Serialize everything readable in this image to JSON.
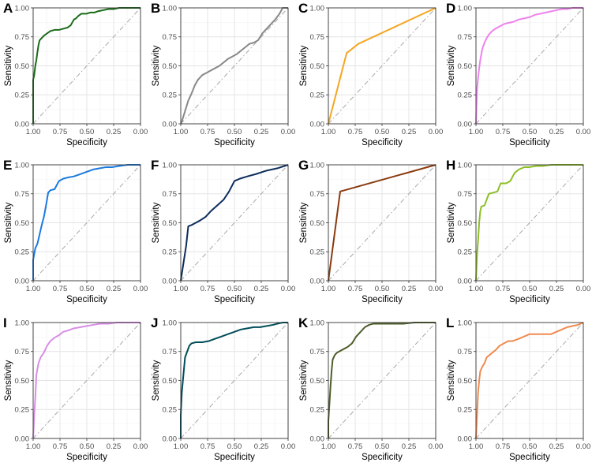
{
  "figure": {
    "rows": 3,
    "cols": 4
  },
  "chart_data": [
    {
      "type": "line",
      "label": "A",
      "xlabel": "Specificity",
      "ylabel": "Sensitivity",
      "xlim": [
        1,
        0
      ],
      "ylim": [
        0,
        1
      ],
      "x_ticks": [
        "1.00",
        "0.75",
        "0.50",
        "0.25",
        "0.00"
      ],
      "y_ticks": [
        "0.00",
        "0.25",
        "0.50",
        "0.75",
        "1.00"
      ],
      "color": "#1a6b1a",
      "series": [
        {
          "name": "ROC",
          "x": [
            1,
            1,
            0.99,
            0.98,
            0.97,
            0.96,
            0.95,
            0.94,
            0.92,
            0.9,
            0.87,
            0.84,
            0.8,
            0.76,
            0.72,
            0.68,
            0.65,
            0.62,
            0.6,
            0.58,
            0.55,
            0.5,
            0.47,
            0.43,
            0.4,
            0.35,
            0.3,
            0.25,
            0.2,
            0.1,
            0
          ],
          "y": [
            0,
            0.38,
            0.42,
            0.5,
            0.55,
            0.62,
            0.68,
            0.72,
            0.74,
            0.76,
            0.78,
            0.8,
            0.81,
            0.81,
            0.82,
            0.83,
            0.85,
            0.9,
            0.91,
            0.93,
            0.95,
            0.95,
            0.96,
            0.96,
            0.97,
            0.98,
            0.99,
            0.99,
            1,
            1,
            1
          ]
        }
      ]
    },
    {
      "type": "line",
      "label": "B",
      "xlabel": "Specificity",
      "ylabel": "Sensitivity",
      "xlim": [
        1,
        0
      ],
      "ylim": [
        0,
        1
      ],
      "x_ticks": [
        "1.00",
        "0.75",
        "0.50",
        "0.25",
        "0.00"
      ],
      "y_ticks": [
        "0.00",
        "0.25",
        "0.50",
        "0.75",
        "1.00"
      ],
      "color": "#888888",
      "series": [
        {
          "name": "ROC",
          "x": [
            1,
            0.99,
            0.97,
            0.95,
            0.93,
            0.9,
            0.87,
            0.84,
            0.8,
            0.76,
            0.72,
            0.68,
            0.64,
            0.6,
            0.56,
            0.52,
            0.48,
            0.44,
            0.4,
            0.36,
            0.32,
            0.28,
            0.24,
            0.2,
            0.16,
            0.12,
            0.08,
            0.05,
            0
          ],
          "y": [
            0,
            0.02,
            0.08,
            0.14,
            0.2,
            0.26,
            0.33,
            0.38,
            0.42,
            0.44,
            0.46,
            0.48,
            0.5,
            0.53,
            0.56,
            0.58,
            0.6,
            0.63,
            0.66,
            0.69,
            0.7,
            0.72,
            0.78,
            0.82,
            0.86,
            0.9,
            0.95,
            1,
            1
          ]
        }
      ]
    },
    {
      "type": "line",
      "label": "C",
      "xlabel": "Specificity",
      "ylabel": "Sensitivity",
      "xlim": [
        1,
        0
      ],
      "ylim": [
        0,
        1
      ],
      "x_ticks": [
        "1.00",
        "0.75",
        "0.50",
        "0.25",
        "0.00"
      ],
      "y_ticks": [
        "0.00",
        "0.25",
        "0.50",
        "0.75",
        "1.00"
      ],
      "color": "#f5a623",
      "series": [
        {
          "name": "ROC",
          "x": [
            1,
            0.83,
            0.72,
            0
          ],
          "y": [
            0,
            0.61,
            0.69,
            1
          ]
        }
      ]
    },
    {
      "type": "line",
      "label": "D",
      "xlabel": "Specificity",
      "ylabel": "Sensitivity",
      "xlim": [
        1,
        0
      ],
      "ylim": [
        0,
        1
      ],
      "x_ticks": [
        "1.00",
        "0.75",
        "0.50",
        "0.25",
        "0.00"
      ],
      "y_ticks": [
        "0.00",
        "0.25",
        "0.50",
        "0.75",
        "1.00"
      ],
      "color": "#ee82ee",
      "series": [
        {
          "name": "ROC",
          "x": [
            1,
            0.99,
            0.98,
            0.97,
            0.96,
            0.95,
            0.94,
            0.92,
            0.9,
            0.88,
            0.85,
            0.82,
            0.78,
            0.74,
            0.7,
            0.65,
            0.6,
            0.55,
            0.5,
            0.45,
            0.4,
            0.35,
            0.3,
            0.25,
            0.2,
            0.15,
            0.1,
            0.05,
            0
          ],
          "y": [
            0,
            0.3,
            0.4,
            0.48,
            0.55,
            0.6,
            0.65,
            0.7,
            0.74,
            0.77,
            0.8,
            0.82,
            0.84,
            0.86,
            0.87,
            0.88,
            0.9,
            0.91,
            0.92,
            0.94,
            0.95,
            0.96,
            0.97,
            0.98,
            0.99,
            0.99,
            1,
            1,
            1
          ]
        }
      ]
    },
    {
      "type": "line",
      "label": "E",
      "xlabel": "Specificity",
      "ylabel": "Sensitivity",
      "xlim": [
        1,
        0
      ],
      "ylim": [
        0,
        1
      ],
      "x_ticks": [
        "1.00",
        "0.75",
        "0.50",
        "0.25",
        "0.00"
      ],
      "y_ticks": [
        "0.00",
        "0.25",
        "0.50",
        "0.75",
        "1.00"
      ],
      "color": "#1a7ae0",
      "series": [
        {
          "name": "ROC",
          "x": [
            1,
            1,
            0.98,
            0.96,
            0.94,
            0.92,
            0.9,
            0.88,
            0.86,
            0.84,
            0.8,
            0.76,
            0.72,
            0.68,
            0.62,
            0.56,
            0.5,
            0.44,
            0.38,
            0.32,
            0.26,
            0.2,
            0.12,
            0.06,
            0
          ],
          "y": [
            0,
            0.18,
            0.28,
            0.32,
            0.4,
            0.48,
            0.55,
            0.65,
            0.76,
            0.78,
            0.79,
            0.86,
            0.88,
            0.89,
            0.9,
            0.92,
            0.94,
            0.96,
            0.97,
            0.98,
            0.98,
            0.99,
            1,
            1,
            1
          ]
        }
      ]
    },
    {
      "type": "line",
      "label": "F",
      "xlabel": "Specificity",
      "ylabel": "Sensitivity",
      "xlim": [
        1,
        0
      ],
      "ylim": [
        0,
        1
      ],
      "x_ticks": [
        "1.00",
        "0.75",
        "0.50",
        "0.25",
        "0.00"
      ],
      "y_ticks": [
        "0.00",
        "0.25",
        "0.50",
        "0.75",
        "1.00"
      ],
      "color": "#0d2d5e",
      "series": [
        {
          "name": "ROC",
          "x": [
            1,
            0.97,
            0.95,
            0.93,
            0.9,
            0.86,
            0.82,
            0.77,
            0.72,
            0.66,
            0.6,
            0.55,
            0.5,
            0.45,
            0.38,
            0.3,
            0.2,
            0.1,
            0
          ],
          "y": [
            0,
            0.18,
            0.3,
            0.47,
            0.48,
            0.5,
            0.52,
            0.55,
            0.6,
            0.65,
            0.7,
            0.77,
            0.86,
            0.88,
            0.9,
            0.92,
            0.95,
            0.97,
            1
          ]
        }
      ]
    },
    {
      "type": "line",
      "label": "G",
      "xlabel": "Specificity",
      "ylabel": "Sensitivity",
      "xlim": [
        1,
        0
      ],
      "ylim": [
        0,
        1
      ],
      "x_ticks": [
        "1.00",
        "0.75",
        "0.50",
        "0.25",
        "0.00"
      ],
      "y_ticks": [
        "0.00",
        "0.25",
        "0.50",
        "0.75",
        "1.00"
      ],
      "color": "#8b3a0f",
      "series": [
        {
          "name": "ROC",
          "x": [
            1,
            0.89,
            0
          ],
          "y": [
            0,
            0.77,
            1
          ]
        }
      ]
    },
    {
      "type": "line",
      "label": "H",
      "xlabel": "Specificity",
      "ylabel": "Sensitivity",
      "xlim": [
        1,
        0
      ],
      "ylim": [
        0,
        1
      ],
      "x_ticks": [
        "1.00",
        "0.75",
        "0.50",
        "0.25",
        "0.00"
      ],
      "y_ticks": [
        "0.00",
        "0.25",
        "0.50",
        "0.75",
        "1.00"
      ],
      "color": "#8cbf26",
      "series": [
        {
          "name": "ROC",
          "x": [
            1,
            0.99,
            0.98,
            0.97,
            0.96,
            0.95,
            0.92,
            0.88,
            0.84,
            0.8,
            0.77,
            0.72,
            0.68,
            0.64,
            0.6,
            0.55,
            0.5,
            0.44,
            0.38,
            0.3,
            0.22,
            0.12,
            0.05,
            0
          ],
          "y": [
            0,
            0.22,
            0.35,
            0.5,
            0.6,
            0.64,
            0.65,
            0.75,
            0.76,
            0.77,
            0.84,
            0.84,
            0.86,
            0.93,
            0.96,
            0.98,
            0.98,
            0.99,
            0.99,
            1,
            1,
            1,
            1,
            1
          ]
        }
      ]
    },
    {
      "type": "line",
      "label": "I",
      "xlabel": "Specificity",
      "ylabel": "Sensitivity",
      "xlim": [
        1,
        0
      ],
      "ylim": [
        0,
        1
      ],
      "x_ticks": [
        "1.00",
        "0.75",
        "0.50",
        "0.25",
        "0.00"
      ],
      "y_ticks": [
        "0.00",
        "0.25",
        "0.50",
        "0.75",
        "1.00"
      ],
      "color": "#d88de6",
      "series": [
        {
          "name": "ROC",
          "x": [
            1,
            0.99,
            0.98,
            0.97,
            0.95,
            0.93,
            0.9,
            0.87,
            0.84,
            0.8,
            0.76,
            0.72,
            0.68,
            0.62,
            0.56,
            0.5,
            0.44,
            0.38,
            0.3,
            0.22,
            0.12,
            0.05,
            0
          ],
          "y": [
            0,
            0.2,
            0.35,
            0.55,
            0.65,
            0.7,
            0.74,
            0.8,
            0.84,
            0.87,
            0.89,
            0.92,
            0.93,
            0.95,
            0.96,
            0.97,
            0.98,
            0.99,
            0.99,
            1,
            1,
            1,
            1
          ]
        }
      ]
    },
    {
      "type": "line",
      "label": "J",
      "xlabel": "Specificity",
      "ylabel": "Sensitivity",
      "xlim": [
        1,
        0
      ],
      "ylim": [
        0,
        1
      ],
      "x_ticks": [
        "1.00",
        "0.75",
        "0.50",
        "0.25",
        "0.00"
      ],
      "y_ticks": [
        "0.00",
        "0.25",
        "0.50",
        "0.75",
        "1.00"
      ],
      "color": "#004d5a",
      "series": [
        {
          "name": "ROC",
          "x": [
            1,
            1,
            0.99,
            0.98,
            0.97,
            0.96,
            0.94,
            0.92,
            0.9,
            0.86,
            0.8,
            0.74,
            0.68,
            0.62,
            0.56,
            0.5,
            0.44,
            0.38,
            0.32,
            0.26,
            0.2,
            0.14,
            0.1,
            0.05,
            0
          ],
          "y": [
            0,
            0.2,
            0.4,
            0.5,
            0.6,
            0.7,
            0.75,
            0.8,
            0.82,
            0.83,
            0.83,
            0.84,
            0.86,
            0.88,
            0.9,
            0.92,
            0.94,
            0.95,
            0.96,
            0.96,
            0.97,
            0.98,
            0.99,
            1,
            1
          ]
        }
      ]
    },
    {
      "type": "line",
      "label": "K",
      "xlabel": "Specificity",
      "ylabel": "Sensitivity",
      "xlim": [
        1,
        0
      ],
      "ylim": [
        0,
        1
      ],
      "x_ticks": [
        "1.00",
        "0.75",
        "0.50",
        "0.25",
        "0.00"
      ],
      "y_ticks": [
        "0.00",
        "0.25",
        "0.50",
        "0.75",
        "1.00"
      ],
      "color": "#4d5e2a",
      "series": [
        {
          "name": "ROC",
          "x": [
            1,
            1,
            0.99,
            0.98,
            0.97,
            0.96,
            0.94,
            0.92,
            0.9,
            0.86,
            0.82,
            0.78,
            0.74,
            0.7,
            0.66,
            0.62,
            0.58,
            0.5,
            0.4,
            0.3,
            0.2,
            0.1,
            0
          ],
          "y": [
            0,
            0.15,
            0.3,
            0.45,
            0.58,
            0.68,
            0.72,
            0.74,
            0.75,
            0.77,
            0.79,
            0.82,
            0.88,
            0.92,
            0.96,
            0.98,
            0.99,
            0.99,
            0.99,
            0.99,
            1,
            1,
            1
          ]
        }
      ]
    },
    {
      "type": "line",
      "label": "L",
      "xlabel": "Specificity",
      "ylabel": "Sensitivity",
      "xlim": [
        1,
        0
      ],
      "ylim": [
        0,
        1
      ],
      "x_ticks": [
        "1.00",
        "0.75",
        "0.50",
        "0.25",
        "0.00"
      ],
      "y_ticks": [
        "0.00",
        "0.25",
        "0.50",
        "0.75",
        "1.00"
      ],
      "color": "#f08a50",
      "series": [
        {
          "name": "ROC",
          "x": [
            1,
            0.99,
            0.98,
            0.97,
            0.96,
            0.94,
            0.92,
            0.9,
            0.86,
            0.82,
            0.78,
            0.74,
            0.7,
            0.66,
            0.6,
            0.5,
            0.45,
            0.4,
            0.3,
            0.2,
            0.15,
            0.1,
            0.05,
            0
          ],
          "y": [
            0,
            0.2,
            0.4,
            0.5,
            0.58,
            0.62,
            0.65,
            0.7,
            0.73,
            0.76,
            0.8,
            0.82,
            0.84,
            0.84,
            0.86,
            0.9,
            0.9,
            0.9,
            0.9,
            0.94,
            0.96,
            0.97,
            0.98,
            1
          ]
        }
      ]
    }
  ]
}
